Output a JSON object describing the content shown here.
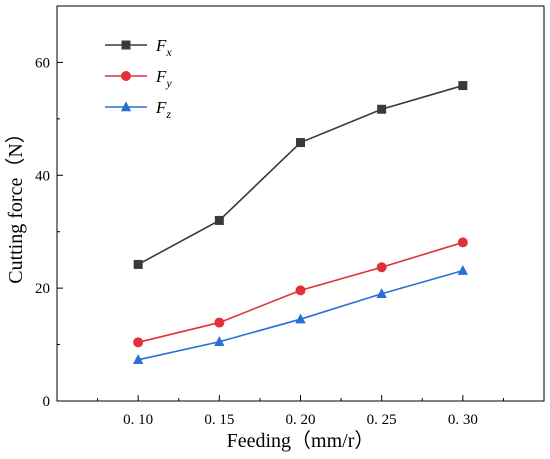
{
  "chart_data": {
    "type": "line",
    "title": "",
    "xlabel": "Feeding（mm/r）",
    "ylabel": "Cutting force（N）",
    "categories": [
      "0. 10",
      "0. 15",
      "0. 20",
      "0. 25",
      "0. 30"
    ],
    "x": [
      0.1,
      0.15,
      0.2,
      0.25,
      0.3
    ],
    "xlim": [
      0.05,
      0.35
    ],
    "ylim": [
      0,
      70
    ],
    "yticks": [
      0,
      20,
      40,
      60
    ],
    "ytick_labels": [
      "0",
      "20",
      "40",
      "60"
    ],
    "grid": false,
    "legend_position": "top-left",
    "series": [
      {
        "name": "F",
        "subscript": "x",
        "marker": "square",
        "color": "#3a3a3a",
        "values": [
          24.2,
          32.0,
          45.8,
          51.7,
          55.9
        ]
      },
      {
        "name": "F",
        "subscript": "y",
        "marker": "circle",
        "color": "#e0313a",
        "values": [
          10.4,
          13.9,
          19.6,
          23.7,
          28.1
        ]
      },
      {
        "name": "F",
        "subscript": "z",
        "marker": "triangle",
        "color": "#2a6fd6",
        "values": [
          7.3,
          10.5,
          14.5,
          19.0,
          23.1
        ]
      }
    ]
  }
}
